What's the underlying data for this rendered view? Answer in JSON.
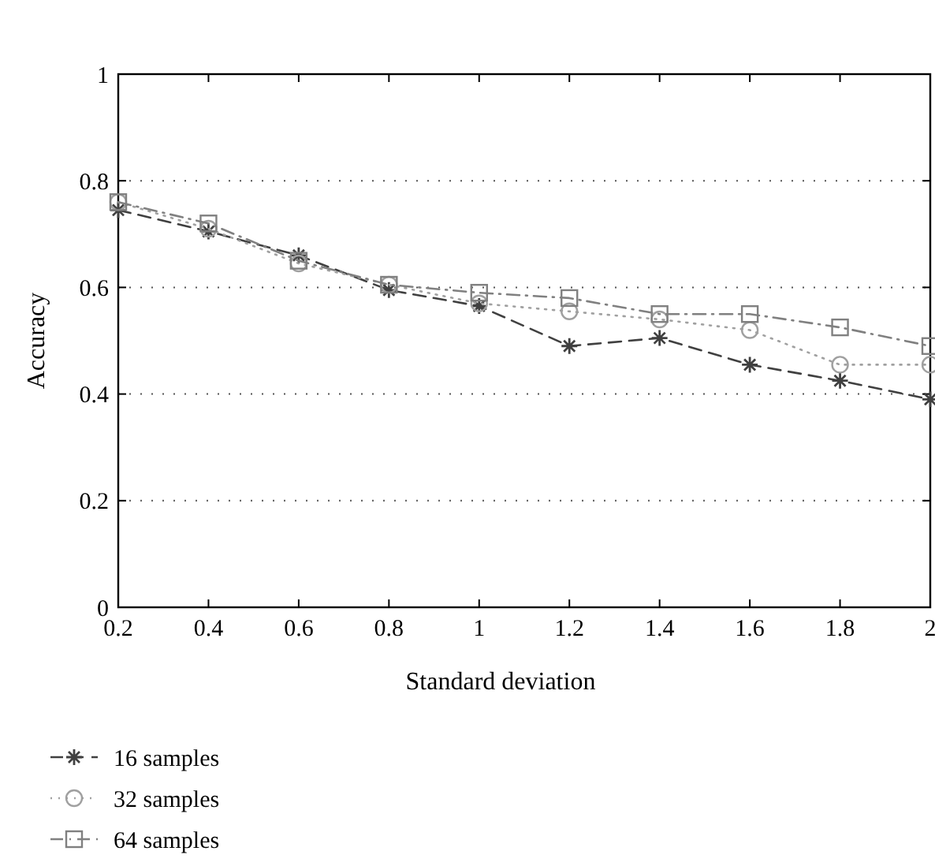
{
  "chart_data": {
    "type": "line",
    "xlabel": "Standard deviation",
    "ylabel": "Accuracy",
    "x": [
      0.2,
      0.4,
      0.6,
      0.8,
      1,
      1.2,
      1.4,
      1.6,
      1.8,
      2
    ],
    "xlim": [
      0.2,
      2
    ],
    "ylim": [
      0,
      1
    ],
    "xticks": [
      0.2,
      0.4,
      0.6,
      0.8,
      1,
      1.2,
      1.4,
      1.6,
      1.8,
      2
    ],
    "yticks": [
      0,
      0.2,
      0.4,
      0.6,
      0.8,
      1
    ],
    "grid": "y",
    "legend": "bottom left",
    "series": [
      {
        "name": "16 samples",
        "color": "#404040",
        "marker": "cross",
        "line_style": "dashed",
        "values": [
          0.745,
          0.705,
          0.66,
          0.595,
          0.565,
          0.49,
          0.505,
          0.455,
          0.425,
          0.39
        ]
      },
      {
        "name": "32 samples",
        "color": "#a0a0a0",
        "marker": "circle",
        "line_style": "dotted",
        "values": [
          0.76,
          0.71,
          0.645,
          0.605,
          0.57,
          0.555,
          0.54,
          0.52,
          0.455,
          0.455
        ]
      },
      {
        "name": "64 samples",
        "color": "#808080",
        "marker": "square",
        "line_style": "dashdot",
        "values": [
          0.76,
          0.72,
          0.65,
          0.605,
          0.59,
          0.58,
          0.55,
          0.55,
          0.525,
          0.49
        ]
      }
    ]
  }
}
